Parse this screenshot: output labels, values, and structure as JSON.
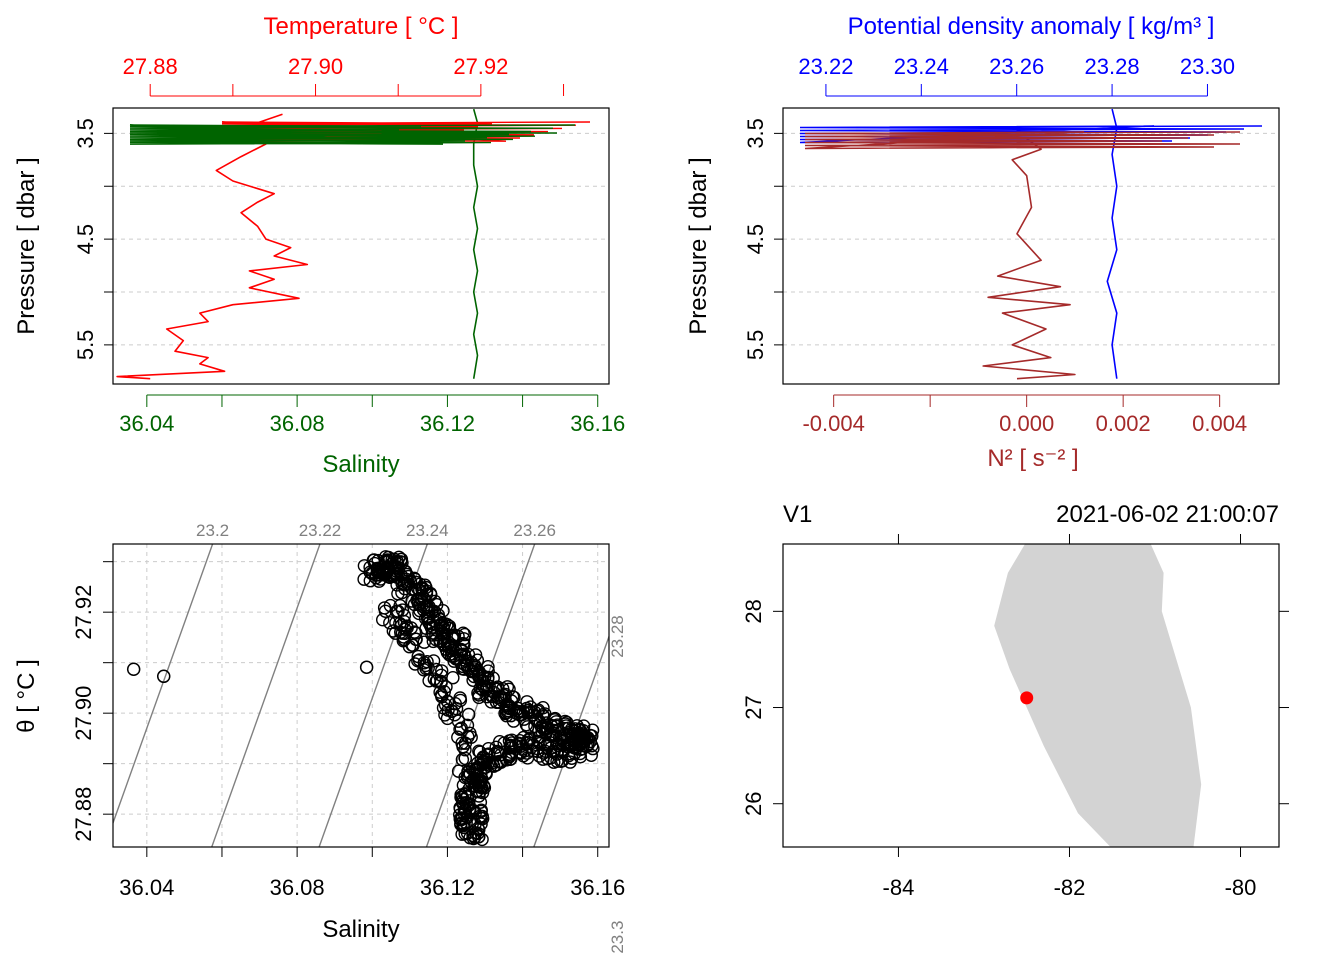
{
  "colors": {
    "temperature": "#ff0000",
    "salinity": "#006400",
    "density": "#0000ff",
    "n2": "#a52a2a",
    "isopycnal": "#808080",
    "grid": "#cccccc",
    "land": "#d3d3d3",
    "station": "#ff0000"
  },
  "chart_data": [
    {
      "id": "profile_TS",
      "type": "line",
      "title": "",
      "ylabel": "Pressure [ dbar ]",
      "ylim": [
        5.87,
        3.26
      ],
      "yticks": [
        "3.5",
        "4.5",
        "5.5"
      ],
      "yticks_minor": [
        4.0,
        5.0
      ],
      "top_axis": {
        "label": "Temperature [ °C ]",
        "lim": [
          27.8755,
          27.9355
        ],
        "ticks": [
          "27.88",
          "27.90",
          "27.92"
        ],
        "ticks_minor": [
          27.89,
          27.91,
          27.93
        ]
      },
      "bottom_axis": {
        "label": "Salinity",
        "lim": [
          36.031,
          36.163
        ],
        "ticks": [
          "36.04",
          "36.08",
          "36.12",
          "36.16"
        ],
        "ticks_minor": [
          36.06,
          36.1,
          36.14
        ]
      },
      "series": [
        {
          "name": "Temperature",
          "axis": "top",
          "points": [
            [
              27.896,
              3.32
            ],
            [
              27.893,
              3.4
            ],
            [
              27.892,
              3.48
            ],
            [
              27.894,
              3.6
            ],
            [
              27.891,
              3.72
            ],
            [
              27.888,
              3.85
            ],
            [
              27.89,
              3.95
            ],
            [
              27.895,
              4.07
            ],
            [
              27.893,
              4.15
            ],
            [
              27.891,
              4.25
            ],
            [
              27.893,
              4.38
            ],
            [
              27.894,
              4.5
            ],
            [
              27.897,
              4.58
            ],
            [
              27.895,
              4.66
            ],
            [
              27.899,
              4.74
            ],
            [
              27.892,
              4.8
            ],
            [
              27.895,
              4.88
            ],
            [
              27.892,
              4.96
            ],
            [
              27.898,
              5.06
            ],
            [
              27.89,
              5.12
            ],
            [
              27.886,
              5.2
            ],
            [
              27.887,
              5.28
            ],
            [
              27.882,
              5.35
            ],
            [
              27.884,
              5.46
            ],
            [
              27.883,
              5.56
            ],
            [
              27.887,
              5.62
            ],
            [
              27.886,
              5.68
            ],
            [
              27.889,
              5.75
            ],
            [
              27.876,
              5.8
            ],
            [
              27.88,
              5.82
            ]
          ]
        },
        {
          "name": "Salinity",
          "axis": "bottom",
          "points": [
            [
              36.127,
              3.27
            ],
            [
              36.128,
              3.4
            ],
            [
              36.127,
              3.6
            ],
            [
              36.127,
              3.8
            ],
            [
              36.128,
              4.0
            ],
            [
              36.127,
              4.2
            ],
            [
              36.128,
              4.4
            ],
            [
              36.127,
              4.6
            ],
            [
              36.128,
              4.8
            ],
            [
              36.127,
              5.0
            ],
            [
              36.128,
              5.2
            ],
            [
              36.127,
              5.4
            ],
            [
              36.128,
              5.6
            ],
            [
              36.127,
              5.82
            ]
          ]
        }
      ]
    },
    {
      "id": "profile_density_N2",
      "type": "line",
      "ylabel": "Pressure [ dbar ]",
      "ylim": [
        5.87,
        3.26
      ],
      "yticks": [
        "3.5",
        "4.5",
        "5.5"
      ],
      "yticks_minor": [
        4.0,
        5.0
      ],
      "top_axis": {
        "label": "Potential density anomaly [ kg/m³ ]",
        "lim": [
          23.211,
          23.315
        ],
        "ticks": [
          "23.22",
          "23.24",
          "23.26",
          "23.28",
          "23.30"
        ]
      },
      "bottom_axis": {
        "label": "N² [ s⁻² ]",
        "lim": [
          -0.00505,
          0.00523
        ],
        "ticks": [
          "-0.004",
          "0.000",
          "0.002",
          "0.004"
        ],
        "ticks_minor": [
          -0.002
        ]
      },
      "series": [
        {
          "name": "Potential density anomaly",
          "axis": "top",
          "points": [
            [
              23.28,
              3.27
            ],
            [
              23.281,
              3.45
            ],
            [
              23.28,
              3.7
            ],
            [
              23.281,
              4.0
            ],
            [
              23.28,
              4.3
            ],
            [
              23.281,
              4.6
            ],
            [
              23.279,
              4.9
            ],
            [
              23.281,
              5.2
            ],
            [
              23.28,
              5.5
            ],
            [
              23.281,
              5.82
            ]
          ]
        },
        {
          "name": "N2",
          "axis": "bottom",
          "points": [
            [
              0.0,
              3.55
            ],
            [
              0.0003,
              3.65
            ],
            [
              -0.0003,
              3.75
            ],
            [
              0.0,
              3.9
            ],
            [
              0.0001,
              4.2
            ],
            [
              -0.0002,
              4.45
            ],
            [
              0.0003,
              4.7
            ],
            [
              -0.0006,
              4.85
            ],
            [
              0.0007,
              4.95
            ],
            [
              -0.0008,
              5.05
            ],
            [
              0.0009,
              5.12
            ],
            [
              -0.0005,
              5.2
            ],
            [
              0.0004,
              5.35
            ],
            [
              -0.0003,
              5.5
            ],
            [
              0.0005,
              5.62
            ],
            [
              -0.0009,
              5.7
            ],
            [
              0.001,
              5.78
            ],
            [
              -0.0002,
              5.82
            ]
          ]
        }
      ]
    },
    {
      "id": "TS_diagram",
      "type": "scatter",
      "xlabel": "Salinity",
      "ylabel": "θ [ °C ]",
      "xlim": [
        36.031,
        36.163
      ],
      "ylim": [
        27.8735,
        27.9335
      ],
      "xticks": [
        "36.04",
        "36.08",
        "36.12",
        "36.16"
      ],
      "yticks": [
        "27.88",
        "27.90",
        "27.92"
      ],
      "isopycnals": [
        {
          "label": "23.2",
          "sigma": 23.2
        },
        {
          "label": "23.22",
          "sigma": 23.22
        },
        {
          "label": "23.24",
          "sigma": 23.24
        },
        {
          "label": "23.26",
          "sigma": 23.26
        },
        {
          "label": "23.28",
          "sigma": 23.28
        },
        {
          "label": "23.3",
          "sigma": 23.3
        }
      ],
      "isolated_points": [
        [
          36.0365,
          27.9087
        ],
        [
          36.0445,
          27.9073
        ],
        [
          36.0985,
          27.9091
        ]
      ],
      "cloud_points": [
        [
          36.1,
          27.9275
        ],
        [
          36.104,
          27.929
        ],
        [
          36.107,
          27.929
        ],
        [
          36.112,
          27.924
        ],
        [
          36.115,
          27.921
        ],
        [
          36.118,
          27.916
        ],
        [
          36.122,
          27.914
        ],
        [
          36.126,
          27.91
        ],
        [
          36.13,
          27.906
        ],
        [
          36.134,
          27.903
        ],
        [
          36.14,
          27.9
        ],
        [
          36.146,
          27.898
        ],
        [
          36.152,
          27.896
        ],
        [
          36.157,
          27.8955
        ],
        [
          36.155,
          27.893
        ],
        [
          36.148,
          27.892
        ],
        [
          36.14,
          27.894
        ],
        [
          36.134,
          27.892
        ],
        [
          36.128,
          27.89
        ],
        [
          36.127,
          27.885
        ],
        [
          36.126,
          27.88
        ],
        [
          36.127,
          27.876
        ],
        [
          36.125,
          27.896
        ],
        [
          36.118,
          27.906
        ],
        [
          36.11,
          27.915
        ],
        [
          36.104,
          27.922
        ]
      ]
    },
    {
      "id": "station_map",
      "type": "scatter",
      "title_left": "V1",
      "title_right": "2021-06-02 21:00:07",
      "xlim": [
        -85.35,
        -79.55
      ],
      "ylim": [
        25.55,
        28.7
      ],
      "xticks": [
        "-84",
        "-82",
        "-80"
      ],
      "yticks": [
        "26",
        "27",
        "28"
      ],
      "land_outline": [
        [
          -82.1,
          28.7
        ],
        [
          -81.05,
          28.7
        ],
        [
          -80.9,
          28.4
        ],
        [
          -80.92,
          28.0
        ],
        [
          -80.58,
          27.0
        ],
        [
          -80.46,
          26.2
        ],
        [
          -80.55,
          25.55
        ],
        [
          -81.52,
          25.55
        ],
        [
          -81.9,
          25.9
        ],
        [
          -82.3,
          26.6
        ],
        [
          -82.7,
          27.4
        ],
        [
          -82.88,
          27.85
        ],
        [
          -82.72,
          28.4
        ],
        [
          -82.52,
          28.7
        ]
      ],
      "station": {
        "lon": -82.5,
        "lat": 27.1
      }
    }
  ]
}
